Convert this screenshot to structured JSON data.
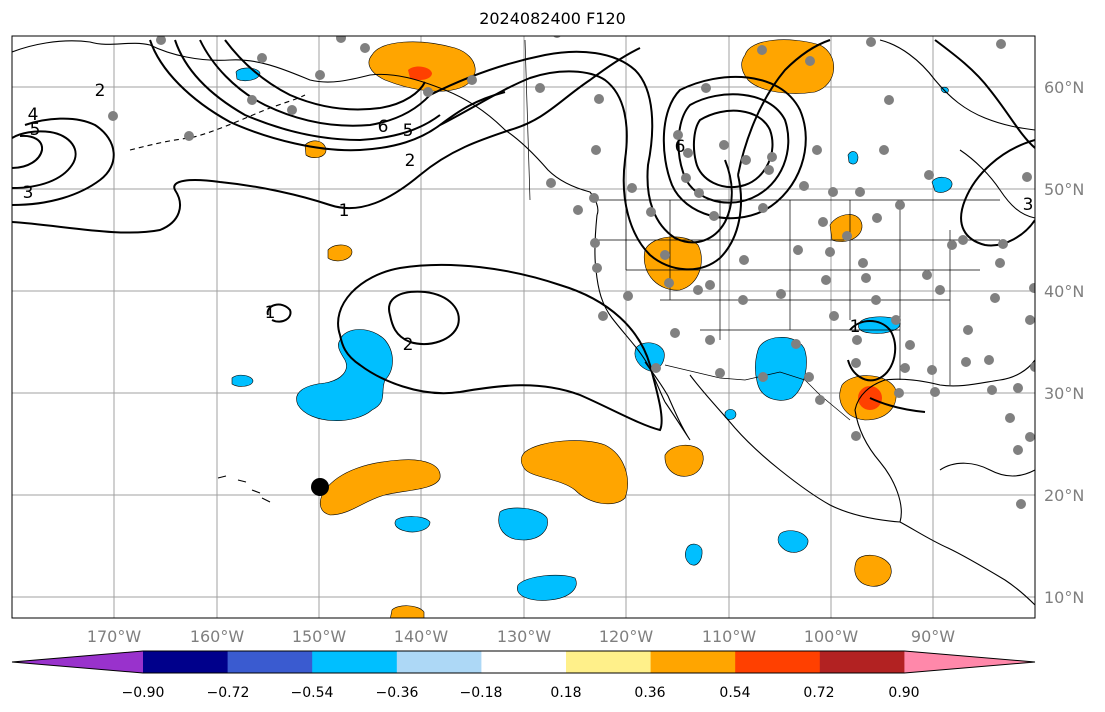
{
  "title": "2024082400 F120",
  "longitude_labels": [
    "170°W",
    "160°W",
    "150°W",
    "140°W",
    "130°W",
    "120°W",
    "110°W",
    "100°W",
    "90°W"
  ],
  "latitude_labels": [
    "60°N",
    "50°N",
    "40°N",
    "30°N",
    "20°N",
    "10°N"
  ],
  "contour_labels": [
    "2",
    "4",
    "5",
    "3",
    "6",
    "5",
    "2",
    "1",
    "2",
    "1",
    "6",
    "1",
    "3"
  ],
  "colorbar": {
    "tick_labels": [
      "−0.90",
      "−0.72",
      "−0.54",
      "−0.36",
      "−0.18",
      "0.18",
      "0.36",
      "0.54",
      "0.72",
      "0.90"
    ],
    "colors": [
      "#9932cc",
      "#00008b",
      "#3a5bd0",
      "#00bfff",
      "#add8f6",
      "#ffffff",
      "#fff08a",
      "#ffa500",
      "#ff4000",
      "#b22222",
      "#ff88aa"
    ]
  },
  "colors": {
    "positive_fill": "#ffa500",
    "positive_strong": "#ff4000",
    "negative_fill": "#00bfff",
    "station_marker": "#808080",
    "highlight_marker": "#000000",
    "grid": "#a0a0a0"
  }
}
